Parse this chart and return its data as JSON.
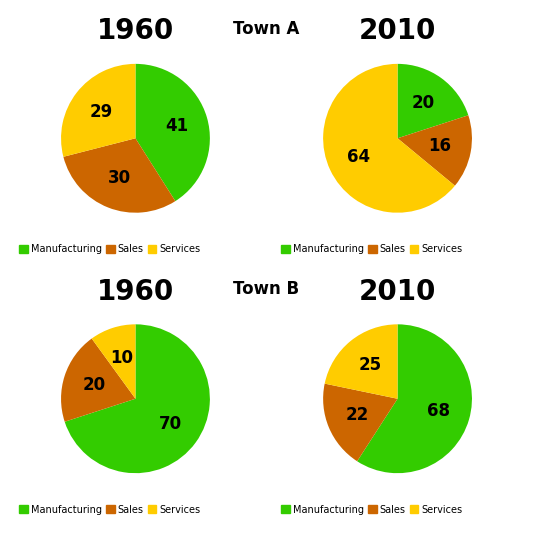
{
  "row_titles": [
    "Town A",
    "Town B"
  ],
  "charts": [
    {
      "title": "1960",
      "values": [
        41,
        30,
        29
      ],
      "colors": [
        "#33cc00",
        "#cc6600",
        "#ffcc00"
      ],
      "startangle": 90
    },
    {
      "title": "2010",
      "values": [
        20,
        16,
        64
      ],
      "colors": [
        "#33cc00",
        "#cc6600",
        "#ffcc00"
      ],
      "startangle": 90
    },
    {
      "title": "1960",
      "values": [
        70,
        20,
        10
      ],
      "colors": [
        "#33cc00",
        "#cc6600",
        "#ffcc00"
      ],
      "startangle": 90
    },
    {
      "title": "2010",
      "values": [
        68,
        22,
        25
      ],
      "colors": [
        "#33cc00",
        "#cc6600",
        "#ffcc00"
      ],
      "startangle": 90
    }
  ],
  "legend_labels": [
    "Manufacturing",
    "Sales",
    "Services"
  ],
  "legend_colors": [
    "#33cc00",
    "#cc6600",
    "#ffcc00"
  ],
  "row_title_fontsize": 12,
  "year_title_fontsize": 20,
  "label_fontsize": 12,
  "legend_fontsize": 7
}
